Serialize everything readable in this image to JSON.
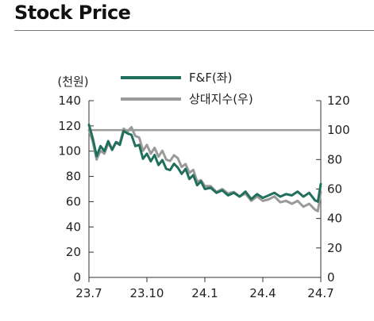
{
  "header": {
    "title": "Stock Price"
  },
  "chart_data": {
    "type": "line",
    "title": "Stock Price",
    "left_axis_unit": "(천원)",
    "ylim_left": [
      0,
      140
    ],
    "ylim_right": [
      0,
      120
    ],
    "yticks_left": [
      0,
      20,
      40,
      60,
      80,
      100,
      120,
      140
    ],
    "yticks_right": [
      0,
      20,
      40,
      60,
      80,
      100,
      120
    ],
    "xtick_labels": [
      "23.7",
      "23.10",
      "24.1",
      "24.4",
      "24.7"
    ],
    "xtick_positions": [
      0,
      3,
      6,
      9,
      12
    ],
    "xlim": [
      0,
      12
    ],
    "grid": false,
    "legend": "top",
    "reference_line_right": 100,
    "series": [
      {
        "name": "F&F(좌)",
        "axis": "left",
        "color": "#1f6f5c",
        "x": [
          0,
          0.2,
          0.4,
          0.6,
          0.8,
          1.0,
          1.2,
          1.4,
          1.6,
          1.8,
          2.0,
          2.2,
          2.4,
          2.6,
          2.8,
          3.0,
          3.2,
          3.4,
          3.6,
          3.8,
          4.0,
          4.2,
          4.4,
          4.6,
          4.8,
          5.0,
          5.2,
          5.4,
          5.6,
          5.8,
          6.0,
          6.3,
          6.6,
          6.9,
          7.2,
          7.5,
          7.8,
          8.1,
          8.4,
          8.7,
          9.0,
          9.3,
          9.6,
          9.9,
          10.2,
          10.5,
          10.8,
          11.1,
          11.4,
          11.7,
          11.85,
          12.0
        ],
        "values": [
          121,
          110,
          96,
          104,
          100,
          108,
          101,
          107,
          105,
          116,
          114,
          113,
          104,
          105,
          94,
          98,
          92,
          97,
          89,
          93,
          86,
          85,
          90,
          87,
          82,
          86,
          78,
          81,
          73,
          76,
          70,
          71,
          67,
          69,
          65,
          67,
          64,
          68,
          62,
          66,
          63,
          65,
          67,
          64,
          66,
          65,
          68,
          64,
          67,
          61,
          60,
          74
        ]
      },
      {
        "name": "상대지수(우)",
        "axis": "right",
        "color": "#9a9a9a",
        "x": [
          0,
          0.2,
          0.4,
          0.6,
          0.8,
          1.0,
          1.2,
          1.4,
          1.6,
          1.8,
          2.0,
          2.2,
          2.4,
          2.6,
          2.8,
          3.0,
          3.2,
          3.4,
          3.6,
          3.8,
          4.0,
          4.2,
          4.4,
          4.6,
          4.8,
          5.0,
          5.2,
          5.4,
          5.6,
          5.8,
          6.0,
          6.3,
          6.6,
          6.9,
          7.2,
          7.5,
          7.8,
          8.1,
          8.4,
          8.7,
          9.0,
          9.3,
          9.6,
          9.9,
          10.2,
          10.5,
          10.8,
          11.1,
          11.4,
          11.7,
          11.85,
          12.0
        ],
        "values": [
          100,
          92,
          80,
          86,
          84,
          91,
          87,
          92,
          91,
          101,
          99,
          102,
          96,
          95,
          86,
          90,
          84,
          88,
          82,
          86,
          80,
          79,
          83,
          81,
          75,
          77,
          71,
          73,
          65,
          66,
          62,
          62,
          58,
          60,
          57,
          58,
          55,
          57,
          52,
          55,
          52,
          53,
          55,
          51,
          52,
          50,
          52,
          48,
          50,
          46,
          45,
          58
        ]
      }
    ]
  }
}
